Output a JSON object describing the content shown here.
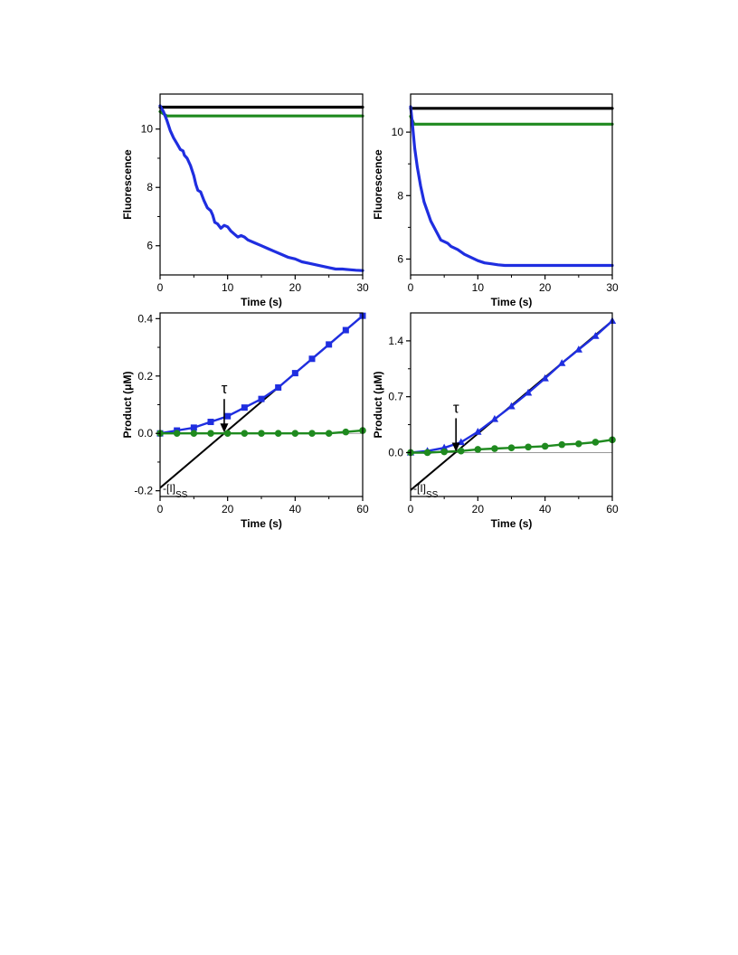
{
  "chart_data": [
    {
      "type": "line",
      "xlabel": "Time (s)",
      "ylabel": "Fluorescence",
      "xlim": [
        0,
        30
      ],
      "ylim": [
        5,
        11.2
      ],
      "xticks": [
        "0",
        "10",
        "20",
        "30"
      ],
      "yticks": [
        "6",
        "8",
        "10"
      ],
      "ytick_values": [
        6,
        8,
        10
      ],
      "series": [
        {
          "color": "#000000",
          "x": [
            0,
            30
          ],
          "y": [
            10.75,
            10.75
          ]
        },
        {
          "color": "#1f8a1f",
          "x": [
            0,
            1,
            30
          ],
          "y": [
            10.6,
            10.45,
            10.45
          ]
        },
        {
          "color": "#1f2ee0",
          "x": [
            0,
            0.5,
            1,
            1.5,
            2,
            2.5,
            3,
            3.4,
            3.6,
            4,
            4.5,
            5,
            5.3,
            5.6,
            6,
            6.5,
            7,
            7.5,
            7.8,
            8.1,
            8.5,
            9,
            9.5,
            10,
            10.5,
            11,
            11.5,
            12,
            12.5,
            13,
            14,
            15,
            16,
            17,
            18,
            19,
            20,
            21,
            22,
            23,
            24,
            25,
            26,
            27,
            28,
            29,
            30
          ],
          "y": [
            10.8,
            10.6,
            10.3,
            9.95,
            9.7,
            9.5,
            9.3,
            9.25,
            9.1,
            9.0,
            8.75,
            8.4,
            8.1,
            7.9,
            7.85,
            7.55,
            7.3,
            7.2,
            7.05,
            6.8,
            6.75,
            6.6,
            6.7,
            6.65,
            6.5,
            6.4,
            6.3,
            6.35,
            6.3,
            6.2,
            6.1,
            6.0,
            5.9,
            5.8,
            5.7,
            5.6,
            5.55,
            5.45,
            5.4,
            5.35,
            5.3,
            5.25,
            5.2,
            5.2,
            5.18,
            5.16,
            5.15
          ]
        }
      ]
    },
    {
      "type": "line",
      "xlabel": "Time (s)",
      "ylabel": "Fluorescence",
      "xlim": [
        0,
        30
      ],
      "ylim": [
        5.5,
        11.2
      ],
      "xticks": [
        "0",
        "10",
        "20",
        "30"
      ],
      "yticks": [
        "6",
        "8",
        "10"
      ],
      "ytick_values": [
        6,
        8,
        10
      ],
      "series": [
        {
          "color": "#000000",
          "x": [
            0,
            30
          ],
          "y": [
            10.75,
            10.75
          ]
        },
        {
          "color": "#1f8a1f",
          "x": [
            0,
            0.5,
            30
          ],
          "y": [
            10.5,
            10.25,
            10.25
          ]
        },
        {
          "color": "#1f2ee0",
          "x": [
            0,
            0.3,
            0.6,
            1,
            1.5,
            2,
            2.5,
            3,
            3.5,
            4,
            4.5,
            5,
            5.5,
            6,
            7,
            8,
            9,
            10,
            11,
            12,
            13,
            14,
            15,
            20,
            25,
            30
          ],
          "y": [
            10.8,
            10.2,
            9.5,
            8.9,
            8.3,
            7.8,
            7.5,
            7.2,
            7.0,
            6.8,
            6.6,
            6.55,
            6.5,
            6.4,
            6.3,
            6.15,
            6.05,
            5.95,
            5.88,
            5.85,
            5.82,
            5.8,
            5.8,
            5.8,
            5.8,
            5.8
          ]
        }
      ]
    },
    {
      "type": "scatter",
      "xlabel": "Time (s)",
      "ylabel": "Product (μM)",
      "xlim": [
        0,
        60
      ],
      "ylim": [
        -0.22,
        0.42
      ],
      "xticks": [
        "0",
        "20",
        "40",
        "60"
      ],
      "yticks": [
        "-0.2",
        "0.0",
        "0.2",
        "0.4"
      ],
      "ytick_values": [
        -0.2,
        0.0,
        0.2,
        0.4
      ],
      "zero_line": true,
      "annotation_tau": {
        "label": "τ",
        "x": 19
      },
      "intercept_label": "-[I]",
      "intercept_subscript": "SS",
      "fit_line": {
        "x": [
          0,
          60
        ],
        "y": [
          -0.19,
          0.41
        ]
      },
      "series": [
        {
          "color": "#1f2ee0",
          "marker": "square",
          "x": [
            0,
            5,
            10,
            15,
            20,
            25,
            30,
            35,
            40,
            45,
            50,
            55,
            60
          ],
          "y": [
            0.0,
            0.01,
            0.02,
            0.04,
            0.06,
            0.09,
            0.12,
            0.16,
            0.21,
            0.26,
            0.31,
            0.36,
            0.41
          ]
        },
        {
          "color": "#1f8a1f",
          "marker": "circle",
          "x": [
            0,
            5,
            10,
            15,
            20,
            25,
            30,
            35,
            40,
            45,
            50,
            55,
            60
          ],
          "y": [
            0.0,
            0.0,
            0.0,
            0.0,
            0.0,
            0.0,
            0.0,
            0.0,
            0.0,
            0.0,
            0.0,
            0.005,
            0.01
          ]
        }
      ]
    },
    {
      "type": "scatter",
      "xlabel": "Time (s)",
      "ylabel": "Product (μM)",
      "xlim": [
        0,
        60
      ],
      "ylim": [
        -0.55,
        1.75
      ],
      "xticks": [
        "0",
        "20",
        "40",
        "60"
      ],
      "yticks": [
        "0.0",
        "0.7",
        "1.4"
      ],
      "ytick_values": [
        0.0,
        0.7,
        1.4
      ],
      "zero_line": true,
      "annotation_tau": {
        "label": "τ",
        "x": 13.5
      },
      "intercept_label": "-[I]",
      "intercept_subscript": "SS",
      "fit_line": {
        "x": [
          0,
          60
        ],
        "y": [
          -0.47,
          1.65
        ]
      },
      "series": [
        {
          "color": "#1f2ee0",
          "marker": "triangle",
          "x": [
            0,
            5,
            10,
            15,
            20,
            25,
            30,
            35,
            40,
            45,
            50,
            55,
            60
          ],
          "y": [
            0.0,
            0.02,
            0.06,
            0.13,
            0.26,
            0.42,
            0.58,
            0.75,
            0.93,
            1.12,
            1.29,
            1.46,
            1.65
          ]
        },
        {
          "color": "#1f8a1f",
          "marker": "circle",
          "x": [
            0,
            5,
            10,
            15,
            20,
            25,
            30,
            35,
            40,
            45,
            50,
            55,
            60
          ],
          "y": [
            0.0,
            0.0,
            0.01,
            0.02,
            0.04,
            0.05,
            0.06,
            0.07,
            0.08,
            0.1,
            0.11,
            0.13,
            0.16
          ]
        }
      ]
    }
  ]
}
